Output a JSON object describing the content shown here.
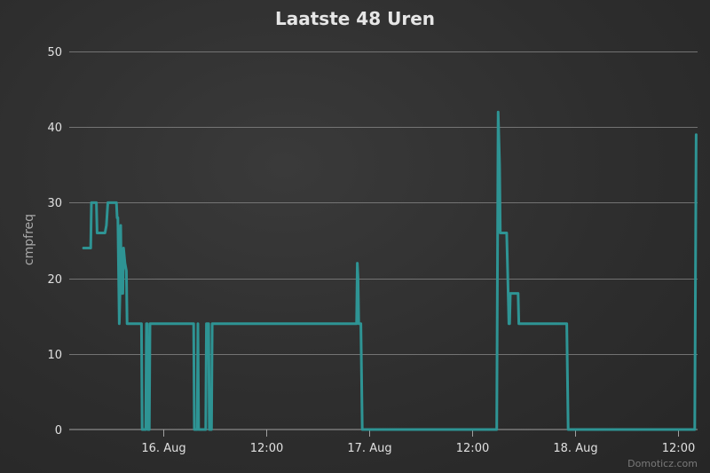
{
  "chart_data": {
    "type": "line",
    "title": "Laatste 48 Uren",
    "ylabel": "cmpfreq",
    "xlabel": "",
    "ylim": [
      0,
      50
    ],
    "yticks": [
      0,
      10,
      20,
      30,
      40,
      50
    ],
    "xlim": [
      "2024-08-15 13:00",
      "2024-08-18 14:15"
    ],
    "xticks": [
      {
        "label": "16. Aug",
        "t": "2024-08-16 00:00"
      },
      {
        "label": "12:00",
        "t": "2024-08-16 12:00"
      },
      {
        "label": "17. Aug",
        "t": "2024-08-17 00:00"
      },
      {
        "label": "12:00",
        "t": "2024-08-17 12:00"
      },
      {
        "label": "18. Aug",
        "t": "2024-08-18 00:00"
      },
      {
        "label": "12:00",
        "t": "2024-08-18 12:00"
      }
    ],
    "grid": true,
    "legend": false,
    "series": [
      {
        "color": "#2e9494",
        "points": [
          [
            "2024-08-15 14:40",
            24
          ],
          [
            "2024-08-15 15:30",
            24
          ],
          [
            "2024-08-15 15:35",
            30
          ],
          [
            "2024-08-15 16:10",
            30
          ],
          [
            "2024-08-15 16:15",
            26
          ],
          [
            "2024-08-15 17:10",
            26
          ],
          [
            "2024-08-15 17:20",
            27
          ],
          [
            "2024-08-15 17:30",
            30
          ],
          [
            "2024-08-15 18:30",
            30
          ],
          [
            "2024-08-15 18:35",
            28
          ],
          [
            "2024-08-15 18:40",
            28
          ],
          [
            "2024-08-15 18:50",
            14
          ],
          [
            "2024-08-15 18:55",
            18
          ],
          [
            "2024-08-15 19:00",
            27
          ],
          [
            "2024-08-15 19:05",
            18
          ],
          [
            "2024-08-15 19:15",
            18
          ],
          [
            "2024-08-15 19:20",
            24
          ],
          [
            "2024-08-15 19:30",
            22
          ],
          [
            "2024-08-15 19:40",
            21
          ],
          [
            "2024-08-15 19:45",
            14
          ],
          [
            "2024-08-15 21:25",
            14
          ],
          [
            "2024-08-15 21:30",
            0
          ],
          [
            "2024-08-15 21:55",
            0
          ],
          [
            "2024-08-15 22:00",
            14
          ],
          [
            "2024-08-15 22:05",
            14
          ],
          [
            "2024-08-15 22:10",
            0
          ],
          [
            "2024-08-15 22:20",
            0
          ],
          [
            "2024-08-15 22:25",
            14
          ],
          [
            "2024-08-16 03:30",
            14
          ],
          [
            "2024-08-16 03:35",
            0
          ],
          [
            "2024-08-16 03:55",
            0
          ],
          [
            "2024-08-16 04:00",
            14
          ],
          [
            "2024-08-16 04:05",
            0
          ],
          [
            "2024-08-16 04:55",
            0
          ],
          [
            "2024-08-16 05:00",
            14
          ],
          [
            "2024-08-16 05:15",
            14
          ],
          [
            "2024-08-16 05:20",
            0
          ],
          [
            "2024-08-16 05:35",
            0
          ],
          [
            "2024-08-16 05:40",
            14
          ],
          [
            "2024-08-16 22:30",
            14
          ],
          [
            "2024-08-16 22:35",
            22
          ],
          [
            "2024-08-16 22:40",
            20
          ],
          [
            "2024-08-16 22:45",
            14
          ],
          [
            "2024-08-16 23:00",
            14
          ],
          [
            "2024-08-16 23:10",
            0
          ],
          [
            "2024-08-17 08:00",
            0
          ],
          [
            "2024-08-17 09:00",
            0
          ],
          [
            "2024-08-17 10:00",
            0
          ],
          [
            "2024-08-17 11:00",
            0
          ],
          [
            "2024-08-17 12:00",
            0
          ],
          [
            "2024-08-17 13:00",
            0
          ],
          [
            "2024-08-17 14:00",
            0
          ],
          [
            "2024-08-17 14:50",
            0
          ],
          [
            "2024-08-17 15:00",
            42
          ],
          [
            "2024-08-17 15:10",
            35
          ],
          [
            "2024-08-17 15:15",
            26
          ],
          [
            "2024-08-17 16:00",
            26
          ],
          [
            "2024-08-17 16:10",
            18
          ],
          [
            "2024-08-17 16:15",
            14
          ],
          [
            "2024-08-17 16:20",
            14
          ],
          [
            "2024-08-17 16:25",
            18
          ],
          [
            "2024-08-17 17:20",
            18
          ],
          [
            "2024-08-17 17:25",
            14
          ],
          [
            "2024-08-17 23:00",
            14
          ],
          [
            "2024-08-17 23:10",
            0
          ],
          [
            "2024-08-18 13:55",
            0
          ],
          [
            "2024-08-18 14:05",
            39
          ]
        ]
      }
    ]
  },
  "credits": "Domoticz.com"
}
